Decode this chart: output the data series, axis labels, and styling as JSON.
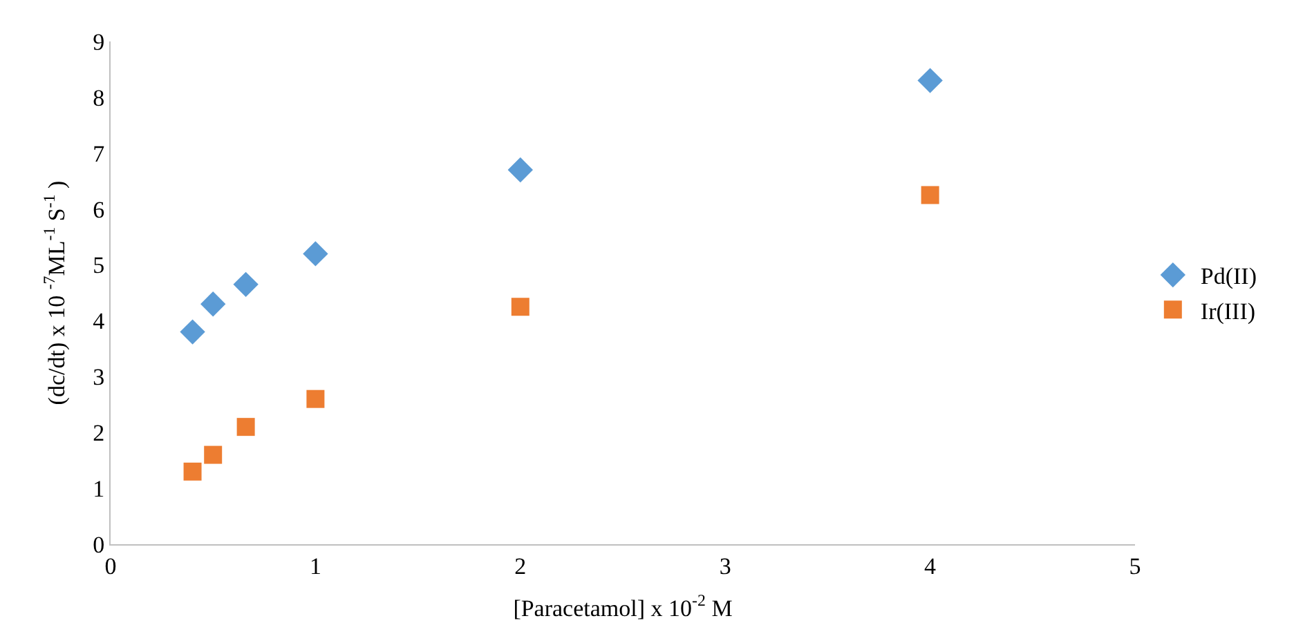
{
  "chart_data": {
    "type": "scatter",
    "xlabel": "[Paracetamol] x 10$^{-2}$ M",
    "ylabel": "(dc/dt) x 10 $^{-7}$ML$^{-1}$ S$^{-1}$ )",
    "x": [
      0.4,
      0.5,
      0.66,
      1,
      2,
      4
    ],
    "series": [
      {
        "name": "Pd(II)",
        "color": "#5b9bd5",
        "marker": "diamond",
        "values": [
          3.8,
          4.3,
          4.65,
          5.2,
          6.7,
          8.3
        ]
      },
      {
        "name": "Ir(III)",
        "color": "#ed7d31",
        "marker": "square",
        "values": [
          1.3,
          1.6,
          2.1,
          2.6,
          4.25,
          6.25
        ]
      }
    ],
    "xlim": [
      0,
      5
    ],
    "xticks": [
      0,
      1,
      2,
      3,
      4,
      5
    ],
    "ylim": [
      0,
      9
    ],
    "yticks": [
      0,
      1,
      2,
      3,
      4,
      5,
      6,
      7,
      8,
      9
    ],
    "legend": "right"
  }
}
